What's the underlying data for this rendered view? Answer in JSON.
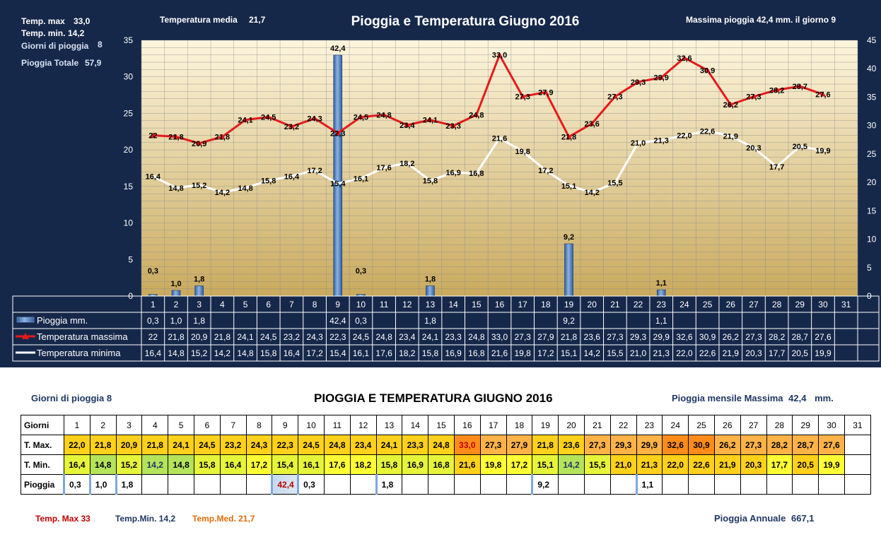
{
  "header": {
    "temp_max_label": "Temp. max",
    "temp_max_value": "33,0",
    "temp_min_label": "Temp.  min.",
    "temp_min_value": "14,2",
    "rain_days_label": "Giorni di pioggia",
    "rain_days_value": "8",
    "rain_total_label": "Pioggia Totale",
    "rain_total_value": "57,9",
    "temp_avg_label": "Temperatura media",
    "temp_avg_value": "21,7",
    "title": "Pioggia e Temperatura Giugno 2016",
    "max_rain_text": "Massima pioggia 42,4 mm.  il giorno  9"
  },
  "chart_data": {
    "type": "bar+line",
    "title": "Pioggia e Temperatura Giugno 2016",
    "categories": [
      "1",
      "2",
      "3",
      "4",
      "5",
      "6",
      "7",
      "8",
      "9",
      "10",
      "11",
      "12",
      "13",
      "14",
      "15",
      "16",
      "17",
      "18",
      "19",
      "20",
      "21",
      "22",
      "23",
      "24",
      "25",
      "26",
      "27",
      "28",
      "29",
      "30",
      "31"
    ],
    "y_left": {
      "min": 0,
      "max": 35,
      "step": 5
    },
    "y_right": {
      "min": 0,
      "max": 45,
      "step": 5
    },
    "series": [
      {
        "name": "Pioggia mm.",
        "kind": "bar",
        "axis": "right",
        "color": "#4f81bd",
        "values": [
          0.3,
          1.0,
          1.8,
          null,
          null,
          null,
          null,
          null,
          42.4,
          0.3,
          null,
          null,
          1.8,
          null,
          null,
          null,
          null,
          null,
          9.2,
          null,
          null,
          null,
          1.1,
          null,
          null,
          null,
          null,
          null,
          null,
          null,
          null
        ],
        "labels": [
          "0,3",
          "1,0",
          "1,8",
          "",
          "",
          "",
          "",
          "",
          "42,4",
          "0,3",
          "",
          "",
          "1,8",
          "",
          "",
          "",
          "",
          "",
          "9,2",
          "",
          "",
          "",
          "1,1",
          "",
          "",
          "",
          "",
          "",
          "",
          "",
          ""
        ]
      },
      {
        "name": "Temperatura massima",
        "kind": "line",
        "axis": "left",
        "color": "#e31a1c",
        "values": [
          22.0,
          21.8,
          20.9,
          21.8,
          24.1,
          24.5,
          23.2,
          24.3,
          22.3,
          24.5,
          24.8,
          23.4,
          24.1,
          23.3,
          24.8,
          33.0,
          27.3,
          27.9,
          21.8,
          23.6,
          27.3,
          29.3,
          29.9,
          32.6,
          30.9,
          26.2,
          27.3,
          28.2,
          28.7,
          27.6,
          null
        ],
        "labels": [
          "22",
          "21,8",
          "20,9",
          "21,8",
          "24,1",
          "24,5",
          "23,2",
          "24,3",
          "22,3",
          "24,5",
          "24,8",
          "23,4",
          "24,1",
          "23,3",
          "24,8",
          "33,0",
          "27,3",
          "27,9",
          "21,8",
          "23,6",
          "27,3",
          "29,3",
          "29,9",
          "32,6",
          "30,9",
          "26,2",
          "27,3",
          "28,2",
          "28,7",
          "27,6",
          ""
        ]
      },
      {
        "name": "Temperatura minima",
        "kind": "line",
        "axis": "left",
        "color": "#ffffff",
        "values": [
          16.4,
          14.8,
          15.2,
          14.2,
          14.8,
          15.8,
          16.4,
          17.2,
          15.4,
          16.1,
          17.6,
          18.2,
          15.8,
          16.9,
          16.8,
          21.6,
          19.8,
          17.2,
          15.1,
          14.2,
          15.5,
          21.0,
          21.3,
          22.0,
          22.6,
          21.9,
          20.3,
          17.7,
          20.5,
          19.9,
          null
        ],
        "labels": [
          "16,4",
          "14,8",
          "15,2",
          "14,2",
          "14,8",
          "15,8",
          "16,4",
          "17,2",
          "15,4",
          "16,1",
          "17,6",
          "18,2",
          "15,8",
          "16,9",
          "16,8",
          "21,6",
          "19,8",
          "17,2",
          "15,1",
          "14,2",
          "15,5",
          "21,0",
          "21,3",
          "22,0",
          "22,6",
          "21,9",
          "20,3",
          "17,7",
          "20,5",
          "19,9",
          ""
        ]
      }
    ]
  },
  "bottom": {
    "rain_days_label": "Giorni di pioggia",
    "rain_days_value": "8",
    "title": "PIOGGIA E TEMPERATURA GIUGNO 2016",
    "max_rain_label": "Pioggia mensile Massima",
    "max_rain_value": "42,4",
    "max_rain_unit": "mm.",
    "row_labels": {
      "days": "Giorni",
      "tmax": "T. Max.",
      "tmin": "T. Min.",
      "rain": "Pioggia"
    },
    "temp_max_label": "Temp. Max",
    "temp_max_value": "33",
    "temp_min_label": "Temp.Min.",
    "temp_min_value": "14,2",
    "temp_med_label": "Temp.Med.",
    "temp_med_value": "21,7",
    "annual_rain_label": "Pioggia Annuale",
    "annual_rain_value": "667,1"
  },
  "colors": {
    "panel_bg": "#16284a",
    "plot_top": "#fdf3d6",
    "plot_bottom": "#c8a85c",
    "rain_bar": "#4f81bd",
    "temp_max_line": "#e31a1c",
    "temp_min_line": "#ffffff",
    "cell_hot": "#ff8c1a",
    "cell_warm": "#ffc000",
    "cell_mild": "#ffff33",
    "cell_cool": "#d8f03a",
    "cell_cold": "#b5e35a",
    "bottom_blue": "#1f3864",
    "bottom_red": "#c00000",
    "bottom_orange": "#e36c09"
  }
}
